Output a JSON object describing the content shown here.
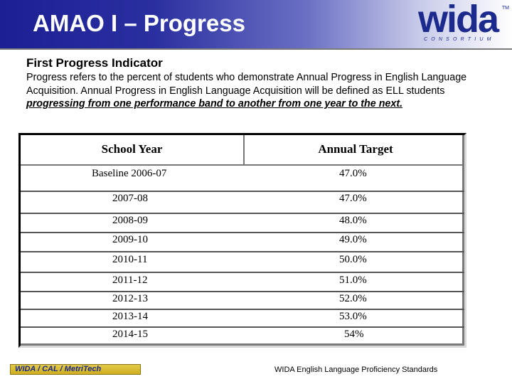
{
  "header": {
    "title": "AMAO I – Progress"
  },
  "logo": {
    "word": "wida",
    "tm": "TM",
    "sub": "CONSORTIUM"
  },
  "indicator": {
    "title": "First Progress Indicator",
    "description_plain": "Progress refers to the percent of students who demonstrate Annual Progress in English Language Acquisition. Annual Progress in English Language Acquisition will be defined as ELL students ",
    "description_emphasis": "progressing from one performance band to another from one year to the next. "
  },
  "table": {
    "headers": [
      "School Year",
      "Annual Target"
    ],
    "rows": [
      {
        "year": "Baseline 2006-07",
        "target": "47.0%"
      },
      {
        "year": "2007-08",
        "target": "47.0%"
      },
      {
        "year": "2008-09",
        "target": "48.0%"
      },
      {
        "year": "2009-10",
        "target": "49.0%"
      },
      {
        "year": "2010-11",
        "target": "50.0%"
      },
      {
        "year": "2011-12",
        "target": "51.0%"
      },
      {
        "year": "2012-13",
        "target": "52.0%"
      },
      {
        "year": "2013-14",
        "target": "53.0%"
      },
      {
        "year": "2014-15",
        "target": "54%"
      }
    ]
  },
  "footer": {
    "left": "WIDA / CAL / MetriTech",
    "right": "WIDA English Language Proficiency Standards"
  }
}
